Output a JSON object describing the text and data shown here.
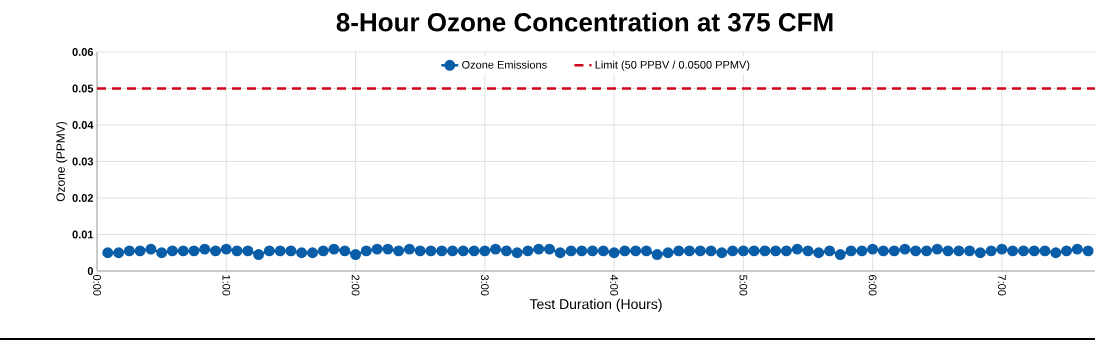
{
  "chart_data": {
    "type": "line",
    "title": "8-Hour Ozone Concentration at 375 CFM",
    "xlabel": "Test Duration (Hours)",
    "ylabel": "Ozone (PPMV)",
    "xlim": [
      0,
      7.72
    ],
    "ylim": [
      0,
      0.06
    ],
    "xticks": [
      {
        "value": 0,
        "label": "0:00"
      },
      {
        "value": 1,
        "label": "1:00"
      },
      {
        "value": 2,
        "label": "2:00"
      },
      {
        "value": 3,
        "label": "3:00"
      },
      {
        "value": 4,
        "label": "4:00"
      },
      {
        "value": 5,
        "label": "5:00"
      },
      {
        "value": 6,
        "label": "6:00"
      },
      {
        "value": 7,
        "label": "7:00"
      }
    ],
    "yticks": [
      0,
      0.01,
      0.02,
      0.03,
      0.04,
      0.05,
      0.06
    ],
    "grid": true,
    "legend": "top",
    "series": [
      {
        "name": "Ozone Emissions",
        "color": "#0a5ea8",
        "marker": "circle",
        "line_style": "solid",
        "x": [
          0.083,
          0.167,
          0.25,
          0.333,
          0.417,
          0.5,
          0.583,
          0.667,
          0.75,
          0.833,
          0.917,
          1.0,
          1.083,
          1.167,
          1.25,
          1.333,
          1.417,
          1.5,
          1.583,
          1.667,
          1.75,
          1.833,
          1.917,
          2.0,
          2.083,
          2.167,
          2.25,
          2.333,
          2.417,
          2.5,
          2.583,
          2.667,
          2.75,
          2.833,
          2.917,
          3.0,
          3.083,
          3.167,
          3.25,
          3.333,
          3.417,
          3.5,
          3.583,
          3.667,
          3.75,
          3.833,
          3.917,
          4.0,
          4.083,
          4.167,
          4.25,
          4.333,
          4.417,
          4.5,
          4.583,
          4.667,
          4.75,
          4.833,
          4.917,
          5.0,
          5.083,
          5.167,
          5.25,
          5.333,
          5.417,
          5.5,
          5.583,
          5.667,
          5.75,
          5.833,
          5.917,
          6.0,
          6.083,
          6.167,
          6.25,
          6.333,
          6.417,
          6.5,
          6.583,
          6.667,
          6.75,
          6.833,
          6.917,
          7.0,
          7.083,
          7.167,
          7.25,
          7.333,
          7.417,
          7.5,
          7.583,
          7.667
        ],
        "values": [
          0.005,
          0.005,
          0.0055,
          0.0055,
          0.006,
          0.005,
          0.0055,
          0.0055,
          0.0055,
          0.006,
          0.0055,
          0.006,
          0.0055,
          0.0055,
          0.0045,
          0.0055,
          0.0055,
          0.0055,
          0.005,
          0.005,
          0.0055,
          0.006,
          0.0055,
          0.0045,
          0.0055,
          0.006,
          0.006,
          0.0055,
          0.006,
          0.0055,
          0.0055,
          0.0055,
          0.0055,
          0.0055,
          0.0055,
          0.0055,
          0.006,
          0.0055,
          0.005,
          0.0055,
          0.006,
          0.006,
          0.005,
          0.0055,
          0.0055,
          0.0055,
          0.0055,
          0.005,
          0.0055,
          0.0055,
          0.0055,
          0.0045,
          0.005,
          0.0055,
          0.0055,
          0.0055,
          0.0055,
          0.005,
          0.0055,
          0.0055,
          0.0055,
          0.0055,
          0.0055,
          0.0055,
          0.006,
          0.0055,
          0.005,
          0.0055,
          0.0045,
          0.0055,
          0.0055,
          0.006,
          0.0055,
          0.0055,
          0.006,
          0.0055,
          0.0055,
          0.006,
          0.0055,
          0.0055,
          0.0055,
          0.005,
          0.0055,
          0.006,
          0.0055,
          0.0055,
          0.0055,
          0.0055,
          0.005,
          0.0055,
          0.006,
          0.0055
        ]
      },
      {
        "name": "Limit (50 PPBV / 0.0500 PPMV)",
        "color": "#d0021b",
        "marker": "none",
        "line_style": "dashed",
        "x": [
          0,
          7.72
        ],
        "values": [
          0.05,
          0.05
        ]
      }
    ]
  }
}
